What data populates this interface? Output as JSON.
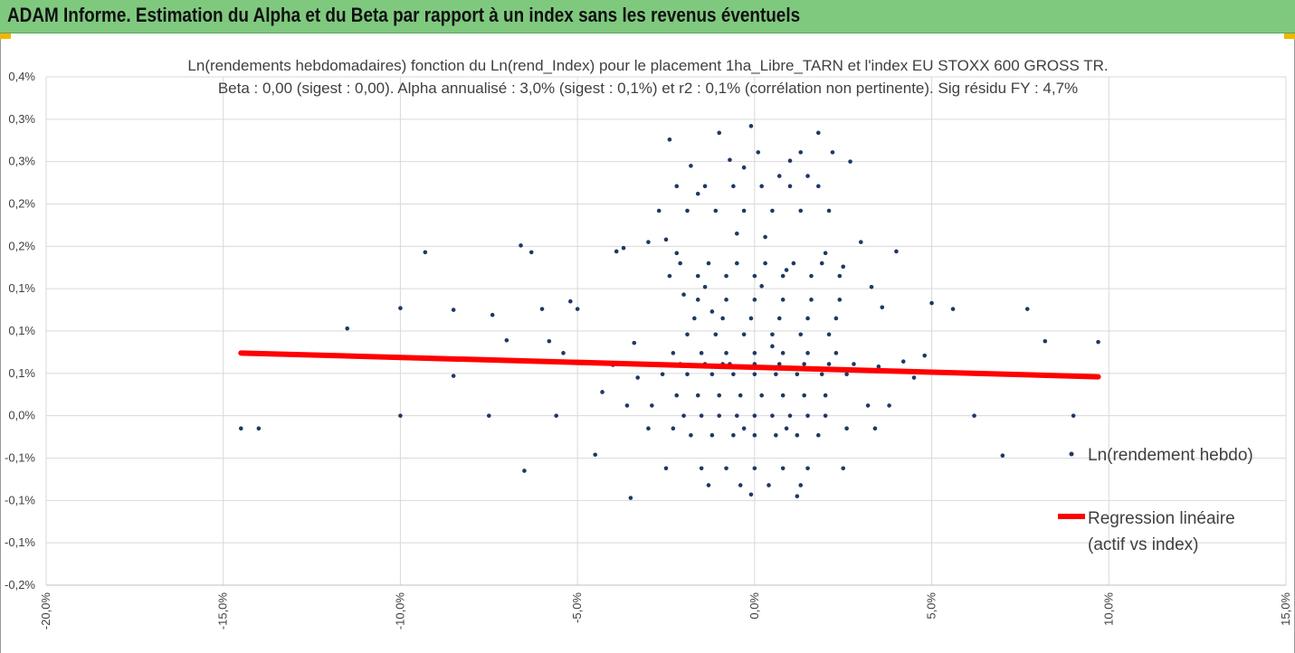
{
  "header": {
    "title": "ADAM Informe. Estimation du Alpha et du Beta par rapport à un index sans les revenus éventuels"
  },
  "colors": {
    "header_bg": "#7fc97f",
    "accent_corner": "#f2b600",
    "points": "#1f3864",
    "regression": "#ff0000"
  },
  "chart_data": {
    "type": "scatter",
    "title_line1": "Ln(rendements hebdomadaires) fonction du Ln(rend_Index) pour le placement 1ha_Libre_TARN et l'index EU STOXX 600 GROSS TR.",
    "title_line2": "Beta : 0,00 (sigest : 0,00). Alpha annualisé : 3,0% (sigest : 0,1%) et r2 : 0,1% (corrélation non pertinente). Sig résidu FY : 4,7%",
    "xlim": [
      -20,
      15
    ],
    "ylim": [
      -0.2,
      0.4
    ],
    "x_ticks": [
      -20,
      -15,
      -10,
      -5,
      0,
      5,
      10,
      15
    ],
    "x_tick_labels": [
      "-20,0%",
      "-15,0%",
      "-10,0%",
      "-5,0%",
      "0,0%",
      "5,0%",
      "10,0%",
      "15,0%"
    ],
    "y_ticks": [
      -0.2,
      -0.15,
      -0.1,
      -0.05,
      0,
      0.05,
      0.1,
      0.15,
      0.2,
      0.25,
      0.3,
      0.35,
      0.4
    ],
    "y_tick_labels": [
      "-0,2%",
      "-0,1%",
      "-0,1%",
      "-0,1%",
      "0,0%",
      "0,1%",
      "0,1%",
      "0,1%",
      "0,2%",
      "0,2%",
      "0,3%",
      "0,3%",
      "0,4%"
    ],
    "grid": true,
    "legend_position": "right",
    "series": [
      {
        "name": "Ln(rendement hebdo)",
        "kind": "scatter",
        "points": [
          [
            -14.5,
            -0.015
          ],
          [
            -14.0,
            -0.015
          ],
          [
            -11.5,
            0.103
          ],
          [
            -10.0,
            0.127
          ],
          [
            -10.0,
            0.0
          ],
          [
            -9.3,
            0.193
          ],
          [
            -8.5,
            0.125
          ],
          [
            -8.5,
            0.047
          ],
          [
            -7.5,
            0.0
          ],
          [
            -7.4,
            0.119
          ],
          [
            -7.0,
            0.089
          ],
          [
            -6.6,
            0.201
          ],
          [
            -6.5,
            -0.065
          ],
          [
            -6.3,
            0.193
          ],
          [
            -6.0,
            0.126
          ],
          [
            -5.8,
            0.088
          ],
          [
            -5.6,
            0.0
          ],
          [
            -5.4,
            0.074
          ],
          [
            -5.2,
            0.135
          ],
          [
            -5.0,
            0.126
          ],
          [
            -4.5,
            -0.046
          ],
          [
            -4.3,
            0.028
          ],
          [
            -3.9,
            0.194
          ],
          [
            -3.7,
            0.198
          ],
          [
            -3.5,
            -0.097
          ],
          [
            -3.3,
            0.045
          ],
          [
            -3.0,
            0.205
          ],
          [
            -2.5,
            0.208
          ],
          [
            -2.4,
            0.326
          ],
          [
            -2.2,
            0.192
          ],
          [
            -2.0,
            0.143
          ],
          [
            -1.8,
            0.295
          ],
          [
            -1.6,
            0.262
          ],
          [
            -1.4,
            0.152
          ],
          [
            -1.2,
            0.123
          ],
          [
            -1.0,
            0.334
          ],
          [
            -0.9,
            0.061
          ],
          [
            -0.7,
            0.302
          ],
          [
            -0.5,
            0.215
          ],
          [
            -0.3,
            0.293
          ],
          [
            -0.1,
            0.342
          ],
          [
            0.1,
            0.311
          ],
          [
            0.2,
            0.153
          ],
          [
            0.3,
            0.211
          ],
          [
            0.5,
            0.082
          ],
          [
            0.7,
            0.283
          ],
          [
            0.9,
            0.172
          ],
          [
            1.0,
            0.301
          ],
          [
            1.3,
            0.311
          ],
          [
            1.5,
            0.283
          ],
          [
            1.8,
            0.334
          ],
          [
            2.0,
            0.192
          ],
          [
            2.2,
            0.311
          ],
          [
            2.5,
            0.176
          ],
          [
            2.7,
            0.3
          ],
          [
            3.0,
            0.205
          ],
          [
            3.3,
            0.152
          ],
          [
            3.6,
            0.128
          ],
          [
            4.0,
            0.194
          ],
          [
            4.5,
            0.045
          ],
          [
            5.0,
            0.133
          ],
          [
            5.6,
            0.126
          ],
          [
            6.2,
            0.0
          ],
          [
            7.0,
            -0.047
          ],
          [
            7.7,
            0.126
          ],
          [
            8.2,
            0.088
          ],
          [
            9.0,
            0.0
          ],
          [
            9.7,
            0.087
          ],
          [
            -2.0,
            0.0
          ],
          [
            -1.5,
            0.0
          ],
          [
            -1.0,
            0.0
          ],
          [
            -0.5,
            0.0
          ],
          [
            0.0,
            0.0
          ],
          [
            0.5,
            0.0
          ],
          [
            1.0,
            0.0
          ],
          [
            1.5,
            0.0
          ],
          [
            2.0,
            0.0
          ],
          [
            -1.8,
            -0.023
          ],
          [
            -1.2,
            -0.023
          ],
          [
            -0.6,
            -0.023
          ],
          [
            0.0,
            -0.023
          ],
          [
            0.6,
            -0.023
          ],
          [
            1.2,
            -0.023
          ],
          [
            1.8,
            -0.023
          ],
          [
            -2.5,
            -0.062
          ],
          [
            -1.5,
            -0.062
          ],
          [
            -0.8,
            -0.062
          ],
          [
            0.0,
            -0.062
          ],
          [
            0.8,
            -0.062
          ],
          [
            1.5,
            -0.062
          ],
          [
            2.5,
            -0.062
          ],
          [
            -1.3,
            -0.082
          ],
          [
            -0.4,
            -0.082
          ],
          [
            0.4,
            -0.082
          ],
          [
            1.3,
            -0.082
          ],
          [
            -0.1,
            -0.093
          ],
          [
            1.2,
            -0.095
          ],
          [
            -2.2,
            0.024
          ],
          [
            -1.6,
            0.024
          ],
          [
            -1.0,
            0.024
          ],
          [
            -0.4,
            0.024
          ],
          [
            0.2,
            0.024
          ],
          [
            0.8,
            0.024
          ],
          [
            1.4,
            0.024
          ],
          [
            2.0,
            0.024
          ],
          [
            -2.6,
            0.049
          ],
          [
            -1.9,
            0.049
          ],
          [
            -1.2,
            0.049
          ],
          [
            -0.6,
            0.049
          ],
          [
            0.0,
            0.049
          ],
          [
            0.6,
            0.049
          ],
          [
            1.2,
            0.049
          ],
          [
            1.9,
            0.049
          ],
          [
            2.6,
            0.049
          ],
          [
            -2.8,
            0.061
          ],
          [
            -2.1,
            0.061
          ],
          [
            -1.4,
            0.061
          ],
          [
            -0.7,
            0.061
          ],
          [
            0.0,
            0.061
          ],
          [
            0.7,
            0.061
          ],
          [
            1.4,
            0.061
          ],
          [
            2.1,
            0.061
          ],
          [
            2.8,
            0.061
          ],
          [
            -2.3,
            0.074
          ],
          [
            -1.5,
            0.074
          ],
          [
            -0.8,
            0.074
          ],
          [
            0.0,
            0.074
          ],
          [
            0.8,
            0.074
          ],
          [
            1.5,
            0.074
          ],
          [
            2.3,
            0.074
          ],
          [
            -1.9,
            0.096
          ],
          [
            -1.1,
            0.096
          ],
          [
            -0.3,
            0.096
          ],
          [
            0.5,
            0.096
          ],
          [
            1.3,
            0.096
          ],
          [
            2.1,
            0.096
          ],
          [
            -1.7,
            0.115
          ],
          [
            -0.9,
            0.115
          ],
          [
            -0.1,
            0.115
          ],
          [
            0.7,
            0.115
          ],
          [
            1.5,
            0.115
          ],
          [
            2.3,
            0.115
          ],
          [
            -1.6,
            0.137
          ],
          [
            -0.8,
            0.137
          ],
          [
            0.0,
            0.137
          ],
          [
            0.8,
            0.137
          ],
          [
            1.6,
            0.137
          ],
          [
            2.4,
            0.137
          ],
          [
            -2.4,
            0.165
          ],
          [
            -1.6,
            0.165
          ],
          [
            -0.8,
            0.165
          ],
          [
            0.0,
            0.165
          ],
          [
            0.8,
            0.165
          ],
          [
            1.6,
            0.165
          ],
          [
            2.4,
            0.165
          ],
          [
            -2.1,
            0.18
          ],
          [
            -1.3,
            0.18
          ],
          [
            -0.5,
            0.18
          ],
          [
            0.3,
            0.18
          ],
          [
            1.1,
            0.18
          ],
          [
            1.9,
            0.18
          ],
          [
            -2.7,
            0.242
          ],
          [
            -1.9,
            0.242
          ],
          [
            -1.1,
            0.242
          ],
          [
            -0.3,
            0.242
          ],
          [
            0.5,
            0.242
          ],
          [
            1.3,
            0.242
          ],
          [
            2.1,
            0.242
          ],
          [
            -2.2,
            0.271
          ],
          [
            -1.4,
            0.271
          ],
          [
            -0.6,
            0.271
          ],
          [
            0.2,
            0.271
          ],
          [
            1.0,
            0.271
          ],
          [
            1.8,
            0.271
          ],
          [
            -3.0,
            -0.015
          ],
          [
            -2.3,
            -0.015
          ],
          [
            -0.3,
            -0.015
          ],
          [
            0.9,
            -0.015
          ],
          [
            2.6,
            -0.015
          ],
          [
            3.4,
            -0.015
          ],
          [
            -3.6,
            0.012
          ],
          [
            -2.9,
            0.012
          ],
          [
            3.2,
            0.012
          ],
          [
            3.8,
            0.012
          ],
          [
            3.5,
            0.058
          ],
          [
            4.2,
            0.064
          ],
          [
            -3.4,
            0.086
          ],
          [
            -4.0,
            0.06
          ],
          [
            4.8,
            0.071
          ]
        ]
      },
      {
        "name": "Regression linéaire (actif vs index)",
        "kind": "line",
        "points": [
          [
            -14.5,
            0.074
          ],
          [
            9.7,
            0.046
          ]
        ]
      }
    ],
    "legend": [
      {
        "label": "Ln(rendement hebdo)"
      },
      {
        "label_line1": "Regression linéaire",
        "label_line2": "(actif vs index)"
      }
    ]
  }
}
